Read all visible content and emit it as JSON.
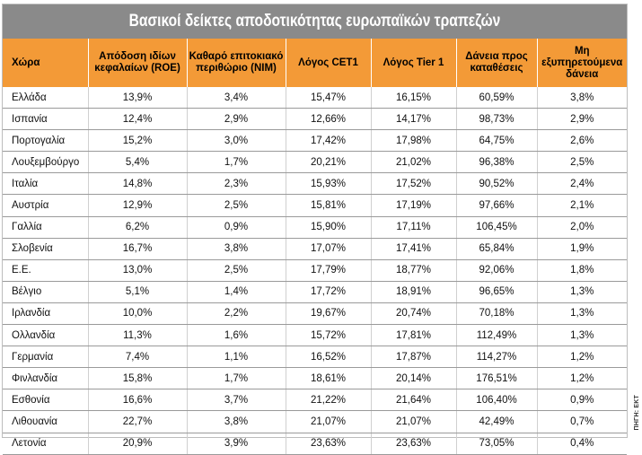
{
  "title": "Βασικοί δείκτες αποδοτικότητας ευρωπαϊκών τραπεζών",
  "source": "ΠΗΓΗ: ΕΚΤ",
  "headers": [
    "Χώρα",
    "Απόδοση ιδίων κεφαλαίων (ROE)",
    "Καθαρό επιτοκιακό περιθώριο (NIM)",
    "Λόγος CET1",
    "Λόγος Tier 1",
    "Δάνεια προς καταθέσεις",
    "Μη εξυπηρετούμενα δάνεια"
  ],
  "rows": [
    [
      "Ελλάδα",
      "13,9%",
      "3,4%",
      "15,47%",
      "16,15%",
      "60,59%",
      "3,8%"
    ],
    [
      "Ισπανία",
      "12,4%",
      "2,9%",
      "12,66%",
      "14,17%",
      "98,73%",
      "2,9%"
    ],
    [
      "Πορτογαλία",
      "15,2%",
      "3,0%",
      "17,42%",
      "17,98%",
      "64,75%",
      "2,6%"
    ],
    [
      "Λουξεμβούργο",
      "5,4%",
      "1,7%",
      "20,21%",
      "21,02%",
      "96,38%",
      "2,5%"
    ],
    [
      "Ιταλία",
      "14,8%",
      "2,3%",
      "15,93%",
      "17,52%",
      "90,52%",
      "2,4%"
    ],
    [
      "Αυστρία",
      "12,9%",
      "2,5%",
      "15,81%",
      "17,19%",
      "97,66%",
      "2,1%"
    ],
    [
      "Γαλλία",
      "6,2%",
      "0,9%",
      "15,90%",
      "17,11%",
      "106,45%",
      "2,0%"
    ],
    [
      "Σλοβενία",
      "16,7%",
      "3,8%",
      "17,07%",
      "17,41%",
      "65,84%",
      "1,9%"
    ],
    [
      "Ε.Ε.",
      "13,0%",
      "2,5%",
      "17,79%",
      "18,77%",
      "92,06%",
      "1,8%"
    ],
    [
      "Βέλγιο",
      "5,1%",
      "1,4%",
      "17,72%",
      "18,91%",
      "96,65%",
      "1,3%"
    ],
    [
      "Ιρλανδία",
      "10,0%",
      "2,2%",
      "19,67%",
      "20,74%",
      "70,18%",
      "1,3%"
    ],
    [
      "Ολλανδία",
      "11,3%",
      "1,6%",
      "15,72%",
      "17,81%",
      "112,49%",
      "1,3%"
    ],
    [
      "Γερμανία",
      "7,4%",
      "1,1%",
      "16,52%",
      "17,87%",
      "114,27%",
      "1,2%"
    ],
    [
      "Φινλανδία",
      "15,8%",
      "1,7%",
      "18,61%",
      "20,14%",
      "176,51%",
      "1,2%"
    ],
    [
      "Εσθονία",
      "16,6%",
      "3,7%",
      "21,22%",
      "21,64%",
      "106,40%",
      "0,9%"
    ],
    [
      "Λιθουανία",
      "22,7%",
      "3,8%",
      "21,07%",
      "21,07%",
      "42,49%",
      "0,7%"
    ],
    [
      "Λετονία",
      "20,9%",
      "3,9%",
      "23,63%",
      "23,63%",
      "73,05%",
      "0,4%"
    ]
  ]
}
